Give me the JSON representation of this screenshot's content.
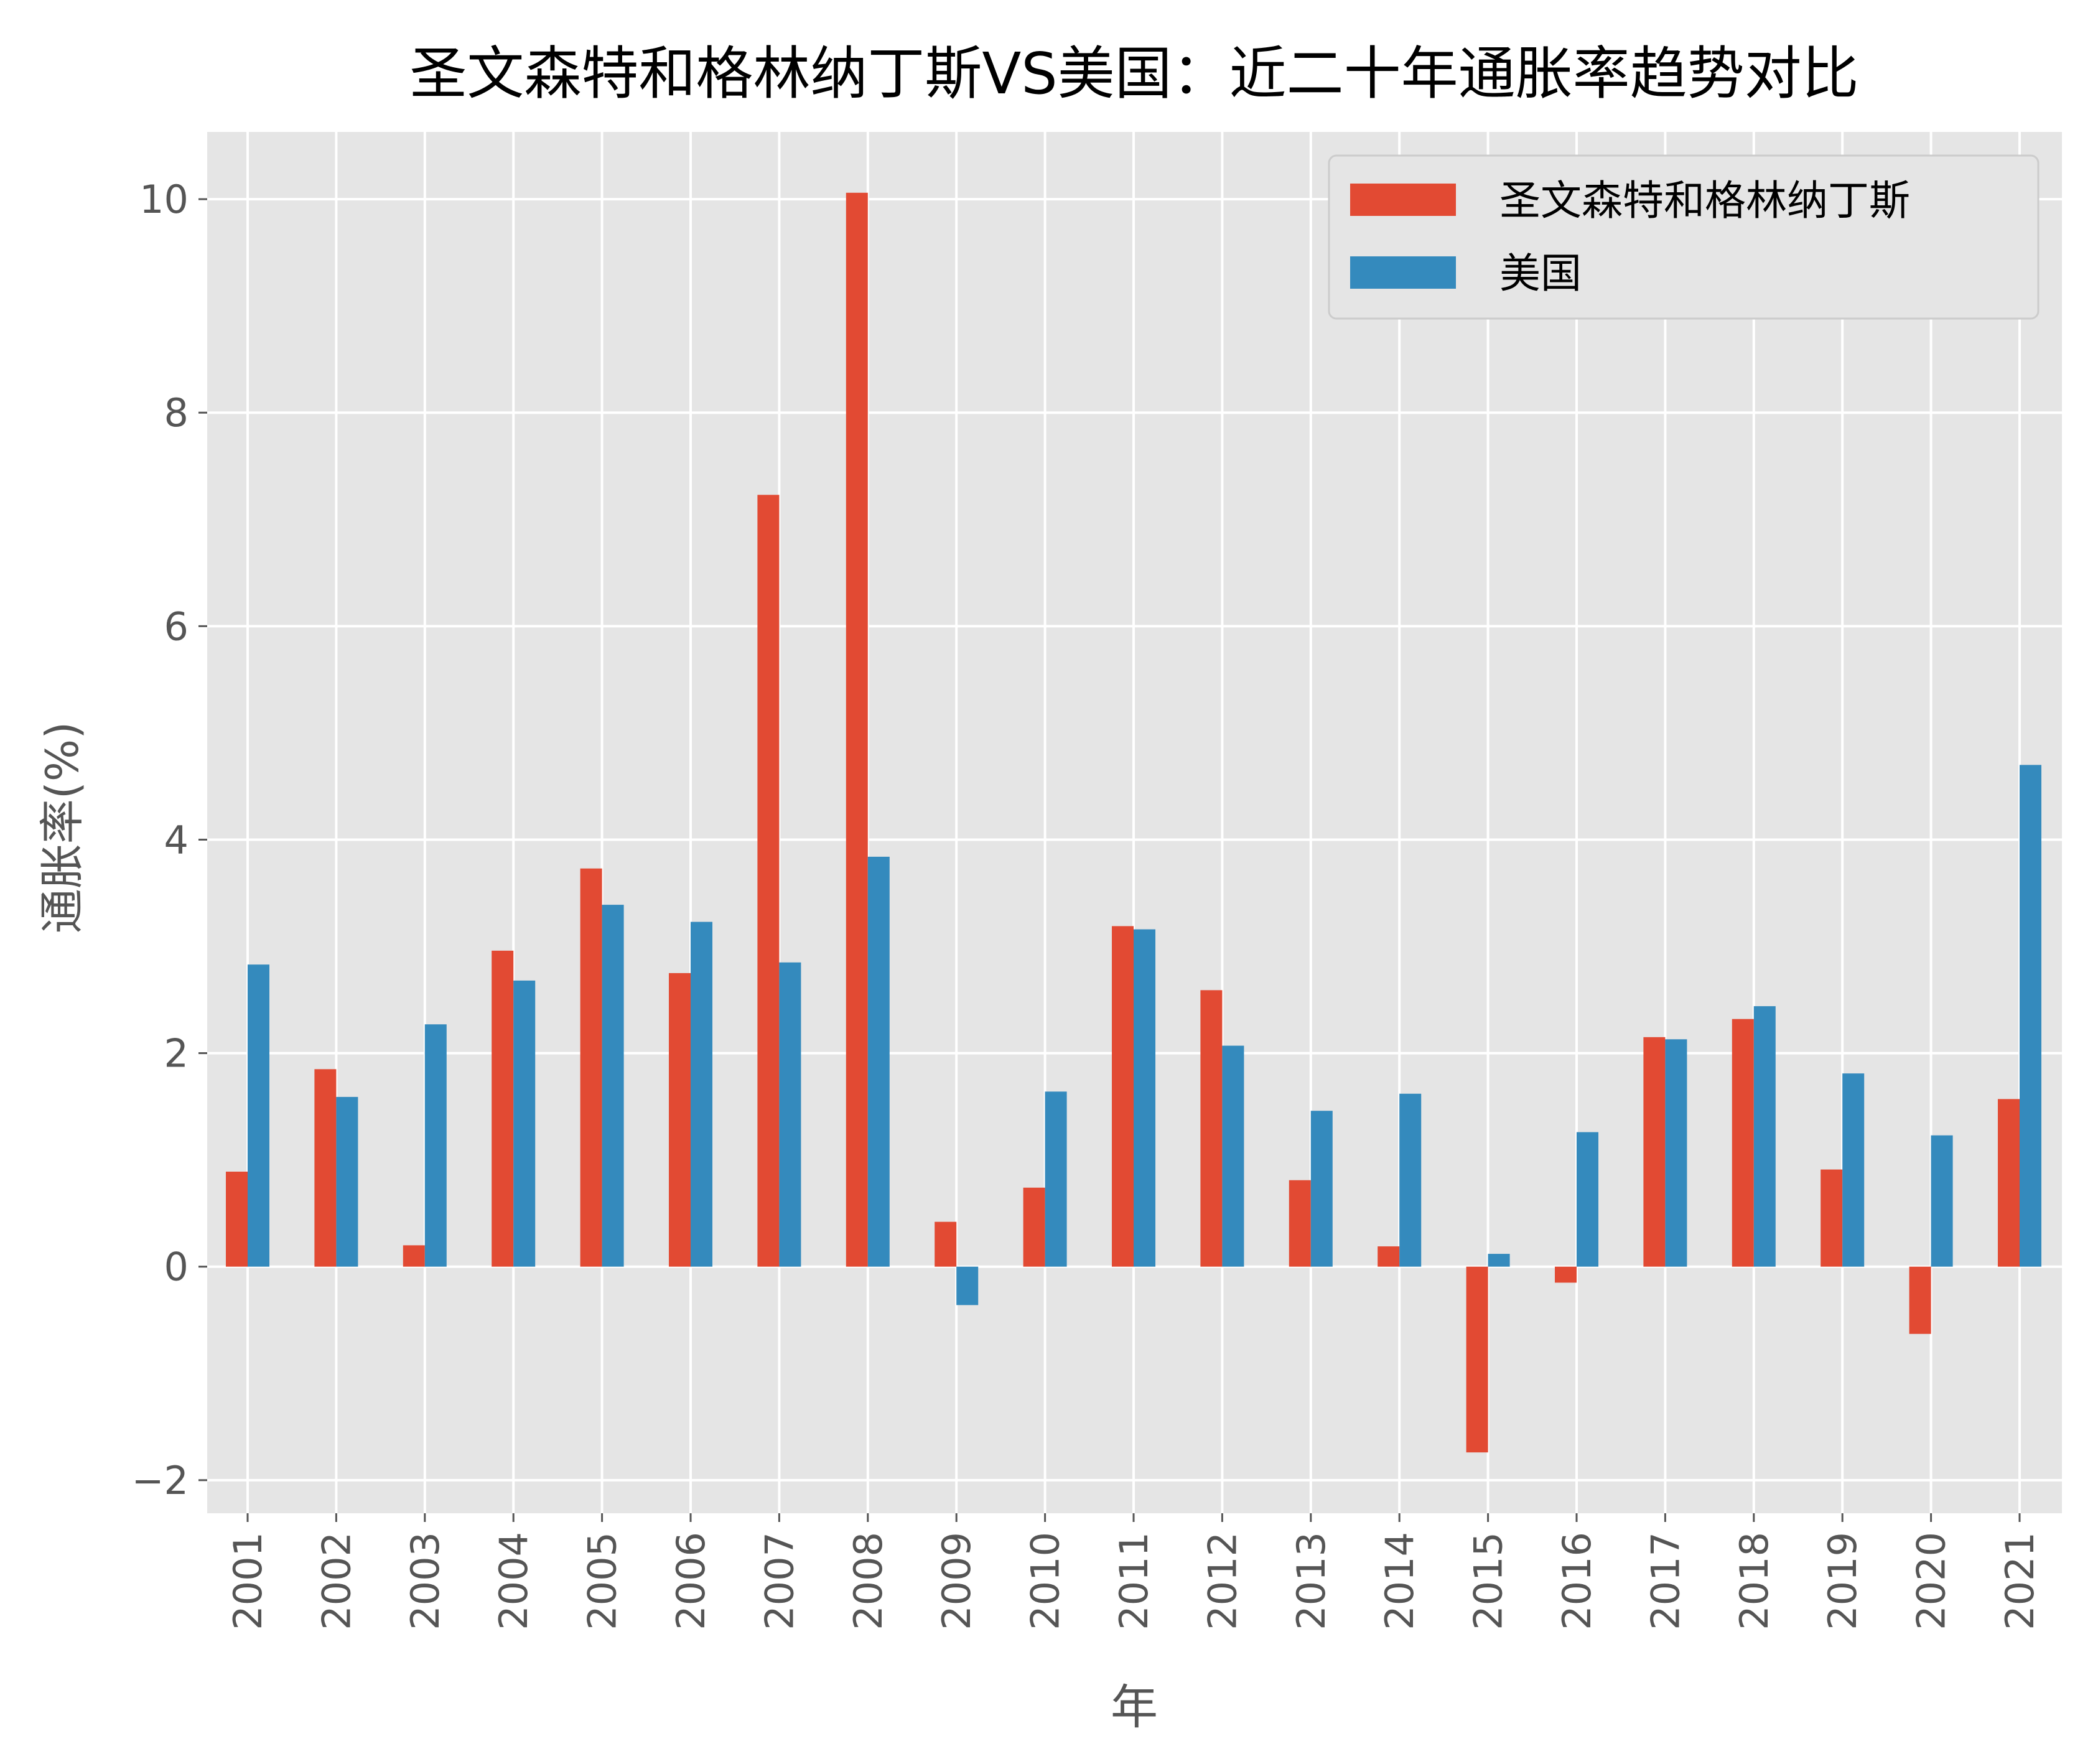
{
  "chart_data": {
    "type": "bar",
    "title": "圣文森特和格林纳丁斯VS美国：近二十年通胀率趋势对比",
    "xlabel": "年",
    "ylabel": "通胀率(%)",
    "categories": [
      "2001",
      "2002",
      "2003",
      "2004",
      "2005",
      "2006",
      "2007",
      "2008",
      "2009",
      "2010",
      "2011",
      "2012",
      "2013",
      "2014",
      "2015",
      "2016",
      "2017",
      "2018",
      "2019",
      "2020",
      "2021"
    ],
    "series": [
      {
        "name": "圣文森特和格林纳丁斯",
        "color": "#E24A33",
        "values": [
          0.89,
          1.85,
          0.2,
          2.96,
          3.73,
          2.75,
          7.23,
          10.06,
          0.42,
          0.74,
          3.19,
          2.59,
          0.81,
          0.19,
          -1.74,
          -0.15,
          2.15,
          2.32,
          0.91,
          -0.63,
          1.57
        ]
      },
      {
        "name": "美国",
        "color": "#348ABD",
        "values": [
          2.83,
          1.59,
          2.27,
          2.68,
          3.39,
          3.23,
          2.85,
          3.84,
          -0.36,
          1.64,
          3.16,
          2.07,
          1.46,
          1.62,
          0.12,
          1.26,
          2.13,
          2.44,
          1.81,
          1.23,
          4.7
        ]
      }
    ],
    "yticks": [
      -2,
      0,
      2,
      4,
      6,
      8,
      10
    ],
    "ylim": [
      -2.31,
      10.63
    ],
    "grid": true,
    "legend": "top-right",
    "background": "#E5E5E5"
  }
}
